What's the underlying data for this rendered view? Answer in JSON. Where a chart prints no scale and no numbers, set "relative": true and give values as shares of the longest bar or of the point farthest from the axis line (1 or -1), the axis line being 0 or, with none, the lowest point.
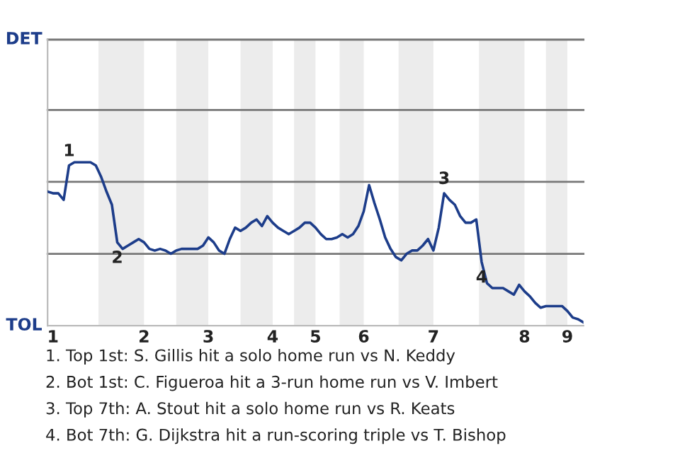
{
  "chart_data": {
    "type": "line",
    "relative": true,
    "categories": [
      null,
      "1",
      null,
      null,
      null,
      null,
      null,
      null,
      null,
      null,
      null,
      null,
      null,
      null,
      null,
      null,
      null,
      null,
      "2",
      null,
      null,
      null,
      null,
      null,
      null,
      null,
      null,
      null,
      null,
      null,
      "3",
      null,
      null,
      null,
      null,
      null,
      null,
      null,
      null,
      null,
      null,
      null,
      "4",
      null,
      null,
      null,
      null,
      null,
      null,
      null,
      "5",
      null,
      null,
      null,
      null,
      null,
      null,
      null,
      null,
      "6",
      null,
      null,
      null,
      null,
      null,
      null,
      null,
      null,
      null,
      null,
      null,
      null,
      "7",
      null,
      null,
      null,
      null,
      null,
      null,
      null,
      null,
      null,
      null,
      null,
      null,
      null,
      null,
      null,
      null,
      "8",
      null,
      null,
      null,
      null,
      null,
      null,
      null,
      "9",
      null,
      null,
      null
    ],
    "series": [
      {
        "color": "#1d3d8a",
        "values": [
          0.82,
          0.81,
          0.81,
          0.77,
          0.98,
          1,
          1,
          1,
          1,
          0.98,
          0.91,
          0.82,
          0.74,
          0.51,
          0.47,
          0.49,
          0.51,
          0.53,
          0.51,
          0.47,
          0.46,
          0.47,
          0.46,
          0.44,
          0.46,
          0.47,
          0.47,
          0.47,
          0.47,
          0.49,
          0.54,
          0.51,
          0.46,
          0.44,
          0.53,
          0.6,
          0.58,
          0.6,
          0.63,
          0.65,
          0.61,
          0.67,
          0.63,
          0.6,
          0.58,
          0.56,
          0.58,
          0.6,
          0.63,
          0.63,
          0.6,
          0.56,
          0.53,
          0.53,
          0.54,
          0.56,
          0.54,
          0.56,
          0.61,
          0.7,
          0.86,
          0.75,
          0.65,
          0.54,
          0.47,
          0.42,
          0.4,
          0.44,
          0.46,
          0.46,
          0.49,
          0.53,
          0.46,
          0.6,
          0.81,
          0.77,
          0.74,
          0.67,
          0.63,
          0.63,
          0.65,
          0.39,
          0.26,
          0.23,
          0.23,
          0.23,
          0.21,
          0.19,
          0.25,
          0.21,
          0.18,
          0.14,
          0.11,
          0.12,
          0.12,
          0.12,
          0.12,
          0.09,
          0.05,
          0.04,
          0.02
        ]
      }
    ],
    "ref_lines": [
      {
        "axis": "y",
        "value": 0.44,
        "label": null,
        "color": "#777777"
      },
      {
        "axis": "y",
        "value": 0.88,
        "label": null,
        "color": "#777777"
      },
      {
        "axis": "y",
        "value": 1.32,
        "label": null,
        "color": "#777777"
      },
      {
        "axis": "y",
        "value": 1.75,
        "label": null,
        "color": "#777777"
      }
    ],
    "marker": "none",
    "line_style": "solid",
    "legend": false,
    "annotations": [
      "DET",
      "TOL",
      {
        "text": "1",
        "y": 0.98
      },
      {
        "text": "2",
        "y": 0.51
      },
      {
        "text": "3",
        "y": 0.81
      },
      {
        "text": "4",
        "y": 0.39
      },
      "1. Top 1st: S. Gillis hit a solo home run vs N. Keddy",
      "2. Bot 1st: C. Figueroa hit a 3-run home run vs V. Imbert",
      "3. Top 7th: A. Stout hit a solo home run vs R. Keats",
      "4. Bot 7th: G. Dijkstra hit a run-scoring triple vs T. Bishop"
    ]
  }
}
